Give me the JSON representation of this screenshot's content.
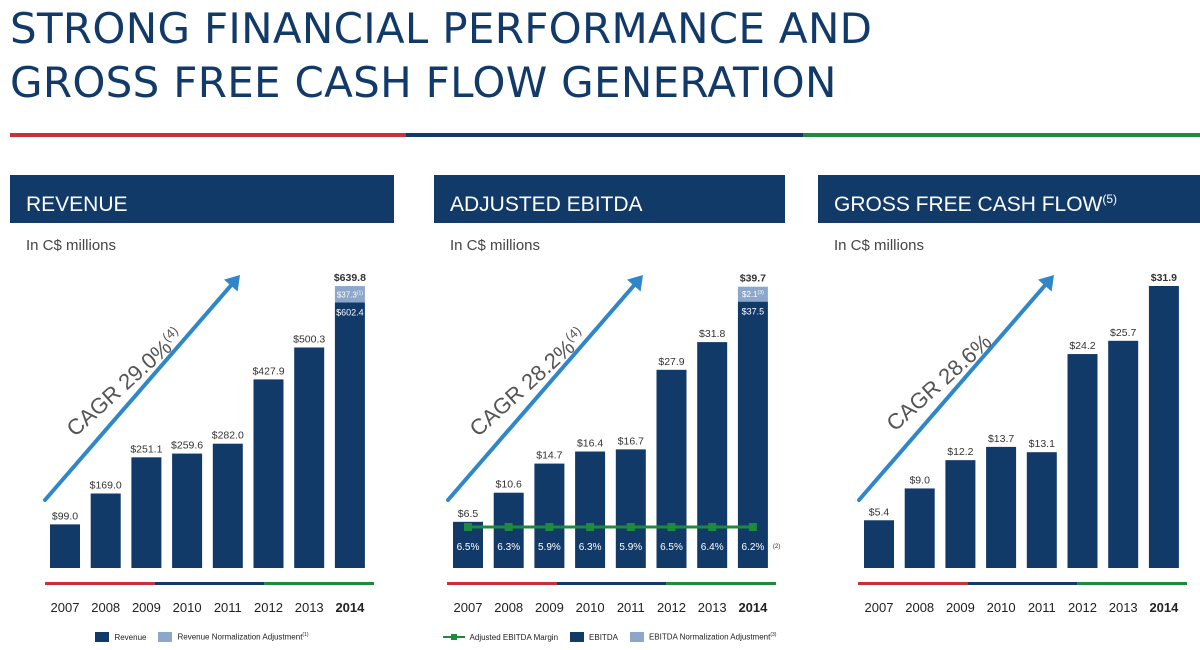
{
  "title_lines": [
    "STRONG FINANCIAL PERFORMANCE AND",
    "GROSS FREE CASH FLOW GENERATION"
  ],
  "colors": {
    "navy": "#123a69",
    "adjustment": "#8da7cb",
    "arrow": "#2f87c9",
    "red": "#c8303a",
    "green": "#1e8a3e",
    "text": "#333333"
  },
  "chart_data": [
    {
      "type": "bar",
      "title": "REVENUE",
      "title_note": "",
      "subtitle": "In C$ millions",
      "cagr_label": "CAGR 29.0%",
      "cagr_note": "(4)",
      "categories": [
        "2007",
        "2008",
        "2009",
        "2010",
        "2011",
        "2012",
        "2013",
        "2014"
      ],
      "series": [
        {
          "name": "Revenue",
          "values": [
            99.0,
            169.0,
            251.1,
            259.6,
            282.0,
            427.9,
            500.3,
            602.4
          ]
        },
        {
          "name": "Revenue Normalization Adjustment",
          "note": "(1)",
          "values": [
            null,
            null,
            null,
            null,
            null,
            null,
            null,
            37.3
          ]
        }
      ],
      "labels": [
        "$99.0",
        "$169.0",
        "$251.1",
        "$259.6",
        "$282.0",
        "$427.9",
        "$500.3",
        "$639.8"
      ],
      "last_base_label": "$602.4",
      "last_adj_label": "$37.3",
      "last_adj_note": "(1)",
      "ylim": [
        0,
        639.8
      ],
      "legend": [
        {
          "kind": "box",
          "color": "#123a69",
          "label": "Revenue",
          "note": ""
        },
        {
          "kind": "box",
          "color": "#8da7cb",
          "label": "Revenue Normalization Adjustment",
          "note": "(1)"
        }
      ]
    },
    {
      "type": "bar",
      "title": "ADJUSTED EBITDA",
      "title_note": "",
      "subtitle": "In C$ millions",
      "cagr_label": "CAGR 28.2%",
      "cagr_note": "(4)",
      "categories": [
        "2007",
        "2008",
        "2009",
        "2010",
        "2011",
        "2012",
        "2013",
        "2014"
      ],
      "series": [
        {
          "name": "EBITDA",
          "values": [
            6.5,
            10.6,
            14.7,
            16.4,
            16.7,
            27.9,
            31.8,
            37.5
          ]
        },
        {
          "name": "EBITDA Normalization Adjustment",
          "note": "(3)",
          "values": [
            null,
            null,
            null,
            null,
            null,
            null,
            null,
            2.1
          ]
        },
        {
          "name": "Adjusted EBITDA Margin",
          "values": [
            "6.5%",
            "6.3%",
            "5.9%",
            "6.3%",
            "5.9%",
            "6.5%",
            "6.4%",
            "6.2%"
          ]
        }
      ],
      "labels": [
        "$6.5",
        "$10.6",
        "$14.7",
        "$16.4",
        "$16.7",
        "$27.9",
        "$31.8",
        "$39.7"
      ],
      "last_base_label": "$37.5",
      "last_adj_label": "$2.1",
      "last_adj_note": "(3)",
      "margin_note": "(2)",
      "ylim": [
        0,
        39.7
      ],
      "legend": [
        {
          "kind": "line",
          "color": "#1e8a3e",
          "label": "Adjusted EBITDA Margin",
          "note": ""
        },
        {
          "kind": "box",
          "color": "#123a69",
          "label": "EBITDA",
          "note": ""
        },
        {
          "kind": "box",
          "color": "#8da7cb",
          "label": "EBITDA Normalization Adjustment",
          "note": "(3)"
        }
      ]
    },
    {
      "type": "bar",
      "title": "GROSS FREE CASH FLOW",
      "title_note": "(5)",
      "subtitle": "In C$ millions",
      "cagr_label": "CAGR 28.6%",
      "cagr_note": "",
      "categories": [
        "2007",
        "2008",
        "2009",
        "2010",
        "2011",
        "2012",
        "2013",
        "2014"
      ],
      "series": [
        {
          "name": "Gross Free Cash Flow",
          "values": [
            5.4,
            9.0,
            12.2,
            13.7,
            13.1,
            24.2,
            25.7,
            31.9
          ]
        }
      ],
      "labels": [
        "$5.4",
        "$9.0",
        "$12.2",
        "$13.7",
        "$13.1",
        "$24.2",
        "$25.7",
        "$31.9"
      ],
      "ylim": [
        0,
        31.9
      ],
      "legend": []
    }
  ]
}
